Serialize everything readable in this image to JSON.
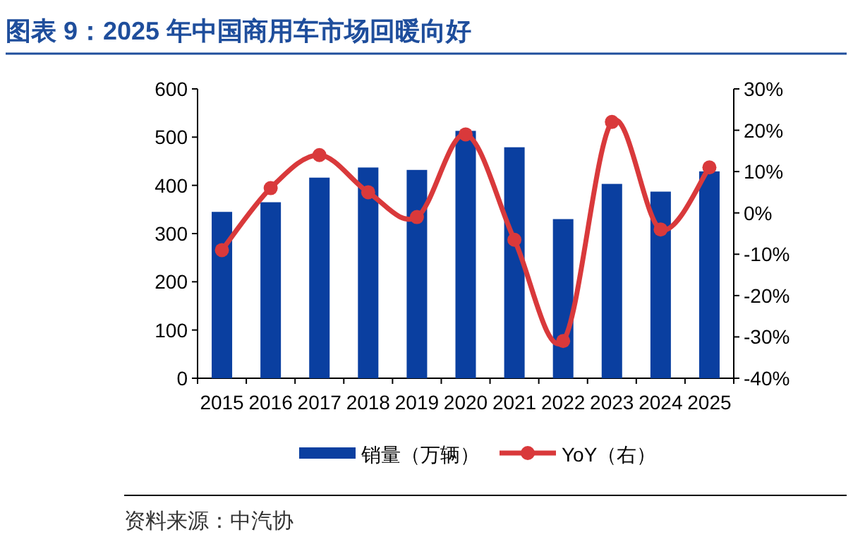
{
  "chart_data": {
    "type": "bar",
    "title": "图表 9：2025 年中国商用车市场回暖向好",
    "categories": [
      "2015",
      "2016",
      "2017",
      "2018",
      "2019",
      "2020",
      "2021",
      "2022",
      "2023",
      "2024",
      "2025"
    ],
    "series": [
      {
        "name": "销量（万辆）",
        "color": "#0a3fa0",
        "values": [
          345,
          365,
          416,
          437,
          432,
          513,
          479,
          330,
          403,
          387,
          429
        ]
      },
      {
        "name": "YoY（右）",
        "type": "line",
        "axis": "y2",
        "color": "#d9393b",
        "marker": "circle",
        "values": [
          -9,
          6,
          14,
          5,
          -1,
          19,
          -6.5,
          -31,
          22,
          -4,
          11
        ]
      }
    ],
    "ylim": [
      0,
      600
    ],
    "yticks": [
      0,
      100,
      200,
      300,
      400,
      500,
      600
    ],
    "y2lim": [
      -40,
      30
    ],
    "y2ticks": [
      {
        "value": -40,
        "label": "-40%"
      },
      {
        "value": -30,
        "label": "-30%"
      },
      {
        "value": -20,
        "label": "-20%"
      },
      {
        "value": -10,
        "label": "-10%"
      },
      {
        "value": 0,
        "label": "0%"
      },
      {
        "value": 10,
        "label": "10%"
      },
      {
        "value": 20,
        "label": "20%"
      },
      {
        "value": 30,
        "label": "30%"
      }
    ],
    "legend": "bottom",
    "annotations": [
      "资料来源：中汽协"
    ]
  }
}
